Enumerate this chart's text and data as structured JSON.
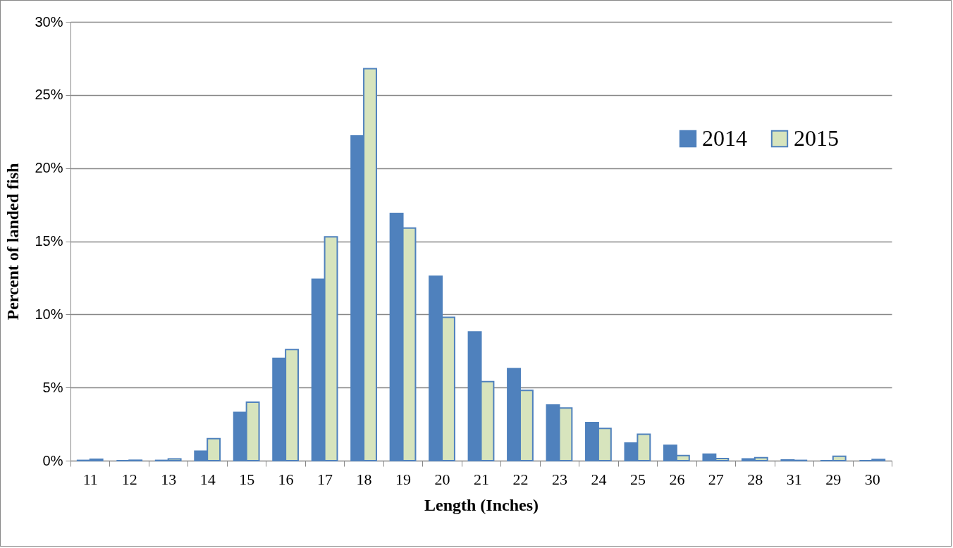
{
  "chart_data": {
    "type": "bar",
    "xlabel": "Length (Inches)",
    "ylabel": "Percent of landed fish",
    "categories": [
      "11",
      "12",
      "13",
      "14",
      "15",
      "16",
      "17",
      "18",
      "19",
      "20",
      "21",
      "22",
      "23",
      "24",
      "25",
      "26",
      "27",
      "28",
      "31",
      "29",
      "30"
    ],
    "series": [
      {
        "name": "2014",
        "color": "#4f81bd",
        "values": [
          0.02,
          0,
          0.02,
          0.65,
          3.3,
          7.0,
          12.4,
          22.2,
          16.9,
          12.6,
          8.8,
          6.3,
          3.8,
          2.6,
          1.2,
          1.05,
          0.45,
          0.12,
          0.05,
          0,
          0
        ]
      },
      {
        "name": "2015",
        "color": "#d7e4bd",
        "values": [
          0.1,
          0.03,
          0.12,
          1.5,
          4.0,
          7.6,
          15.3,
          26.8,
          15.9,
          9.8,
          5.4,
          4.8,
          3.6,
          2.2,
          1.8,
          0.35,
          0.15,
          0.2,
          0.02,
          0.3,
          0.08
        ]
      }
    ],
    "ylim": [
      0,
      30
    ],
    "yticks": [
      {
        "value": 0,
        "label": "0%"
      },
      {
        "value": 5,
        "label": "5%"
      },
      {
        "value": 10,
        "label": "10%"
      },
      {
        "value": 15,
        "label": "15%"
      },
      {
        "value": 20,
        "label": "20%"
      },
      {
        "value": 25,
        "label": "25%"
      },
      {
        "value": 30,
        "label": "30%"
      }
    ],
    "grid": "y",
    "legend": "top right"
  }
}
